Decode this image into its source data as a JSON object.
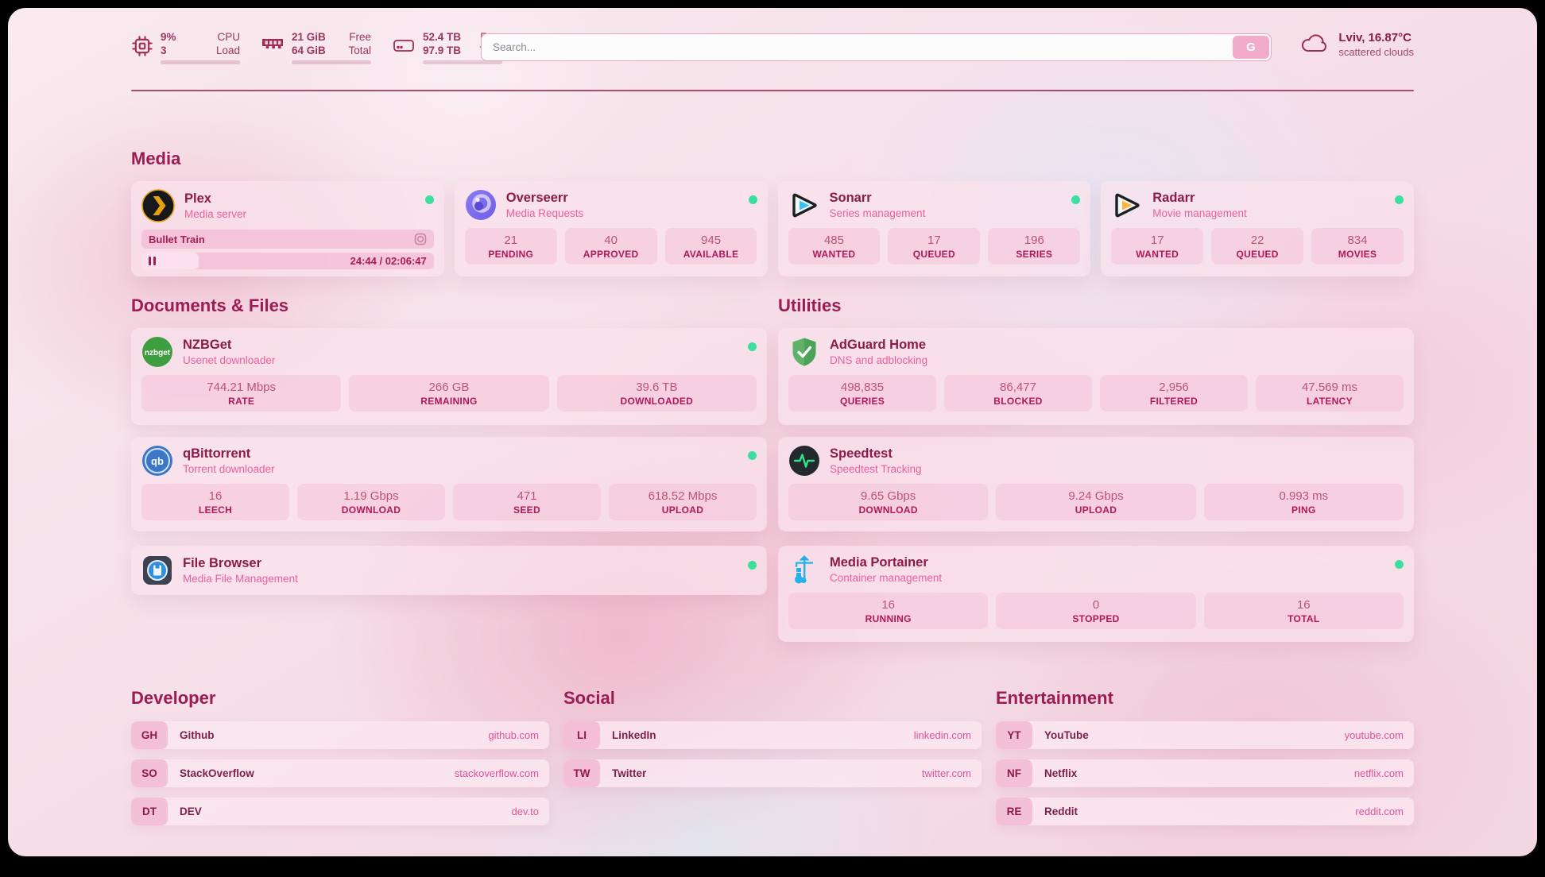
{
  "header": {
    "stats": [
      {
        "icon": "cpu-icon",
        "line1": "9%",
        "line2": "3",
        "label1": "CPU",
        "label2": "Load",
        "progress": 9
      },
      {
        "icon": "ram-icon",
        "line1": "21 GiB",
        "line2": "64 GiB",
        "label1": "Free",
        "label2": "Total",
        "progress": 67
      },
      {
        "icon": "disk-icon",
        "line1": "52.4 TB",
        "line2": "97.9 TB",
        "label1": "Free",
        "label2": "Total",
        "progress": 46
      }
    ],
    "search": {
      "placeholder": "Search...",
      "button_label": "G"
    },
    "weather": {
      "location": "Lviv, 16.87°C",
      "condition": "scattered clouds"
    }
  },
  "sections": {
    "media": {
      "title": "Media",
      "cards": {
        "plex": {
          "title": "Plex",
          "subtitle": "Media server",
          "now_playing": {
            "title": "Bullet Train",
            "time": "24:44 / 02:06:47",
            "progress": 19.6
          }
        },
        "overseerr": {
          "title": "Overseerr",
          "subtitle": "Media Requests",
          "stats": [
            {
              "value": "21",
              "label": "PENDING"
            },
            {
              "value": "40",
              "label": "APPROVED"
            },
            {
              "value": "945",
              "label": "AVAILABLE"
            }
          ]
        },
        "sonarr": {
          "title": "Sonarr",
          "subtitle": "Series management",
          "stats": [
            {
              "value": "485",
              "label": "WANTED"
            },
            {
              "value": "17",
              "label": "QUEUED"
            },
            {
              "value": "196",
              "label": "SERIES"
            }
          ]
        },
        "radarr": {
          "title": "Radarr",
          "subtitle": "Movie management",
          "stats": [
            {
              "value": "17",
              "label": "WANTED"
            },
            {
              "value": "22",
              "label": "QUEUED"
            },
            {
              "value": "834",
              "label": "MOVIES"
            }
          ]
        }
      }
    },
    "documents": {
      "title": "Documents & Files",
      "cards": {
        "nzbget": {
          "title": "NZBGet",
          "subtitle": "Usenet downloader",
          "icon_text": "nzbget",
          "stats": [
            {
              "value": "744.21 Mbps",
              "label": "RATE"
            },
            {
              "value": "266 GB",
              "label": "REMAINING"
            },
            {
              "value": "39.6 TB",
              "label": "DOWNLOADED"
            }
          ]
        },
        "qbittorrent": {
          "title": "qBittorrent",
          "subtitle": "Torrent downloader",
          "icon_text": "qb",
          "stats": [
            {
              "value": "16",
              "label": "LEECH"
            },
            {
              "value": "1.19 Gbps",
              "label": "DOWNLOAD"
            },
            {
              "value": "471",
              "label": "SEED"
            },
            {
              "value": "618.52 Mbps",
              "label": "UPLOAD"
            }
          ]
        },
        "filebrowser": {
          "title": "File Browser",
          "subtitle": "Media File Management"
        }
      }
    },
    "utilities": {
      "title": "Utilities",
      "cards": {
        "adguard": {
          "title": "AdGuard Home",
          "subtitle": "DNS and adblocking",
          "stats": [
            {
              "value": "498,835",
              "label": "QUERIES"
            },
            {
              "value": "86,477",
              "label": "BLOCKED"
            },
            {
              "value": "2,956",
              "label": "FILTERED"
            },
            {
              "value": "47.569 ms",
              "label": "LATENCY"
            }
          ]
        },
        "speedtest": {
          "title": "Speedtest",
          "subtitle": "Speedtest Tracking",
          "stats": [
            {
              "value": "9.65 Gbps",
              "label": "DOWNLOAD"
            },
            {
              "value": "9.24 Gbps",
              "label": "UPLOAD"
            },
            {
              "value": "0.993 ms",
              "label": "PING"
            }
          ]
        },
        "portainer": {
          "title": "Media Portainer",
          "subtitle": "Container management",
          "stats": [
            {
              "value": "16",
              "label": "RUNNING"
            },
            {
              "value": "0",
              "label": "STOPPED"
            },
            {
              "value": "16",
              "label": "TOTAL"
            }
          ]
        }
      }
    },
    "bookmarks": [
      {
        "title": "Developer",
        "links": [
          {
            "abbr": "GH",
            "name": "Github",
            "url": "github.com"
          },
          {
            "abbr": "SO",
            "name": "StackOverflow",
            "url": "stackoverflow.com"
          },
          {
            "abbr": "DT",
            "name": "DEV",
            "url": "dev.to"
          }
        ]
      },
      {
        "title": "Social",
        "links": [
          {
            "abbr": "LI",
            "name": "LinkedIn",
            "url": "linkedin.com"
          },
          {
            "abbr": "TW",
            "name": "Twitter",
            "url": "twitter.com"
          }
        ]
      },
      {
        "title": "Entertainment",
        "links": [
          {
            "abbr": "YT",
            "name": "YouTube",
            "url": "youtube.com"
          },
          {
            "abbr": "NF",
            "name": "Netflix",
            "url": "netflix.com"
          },
          {
            "abbr": "RE",
            "name": "Reddit",
            "url": "reddit.com"
          }
        ]
      }
    ]
  },
  "colors": {
    "accent": "#a22a54",
    "status_online": "#3cdf9e"
  }
}
